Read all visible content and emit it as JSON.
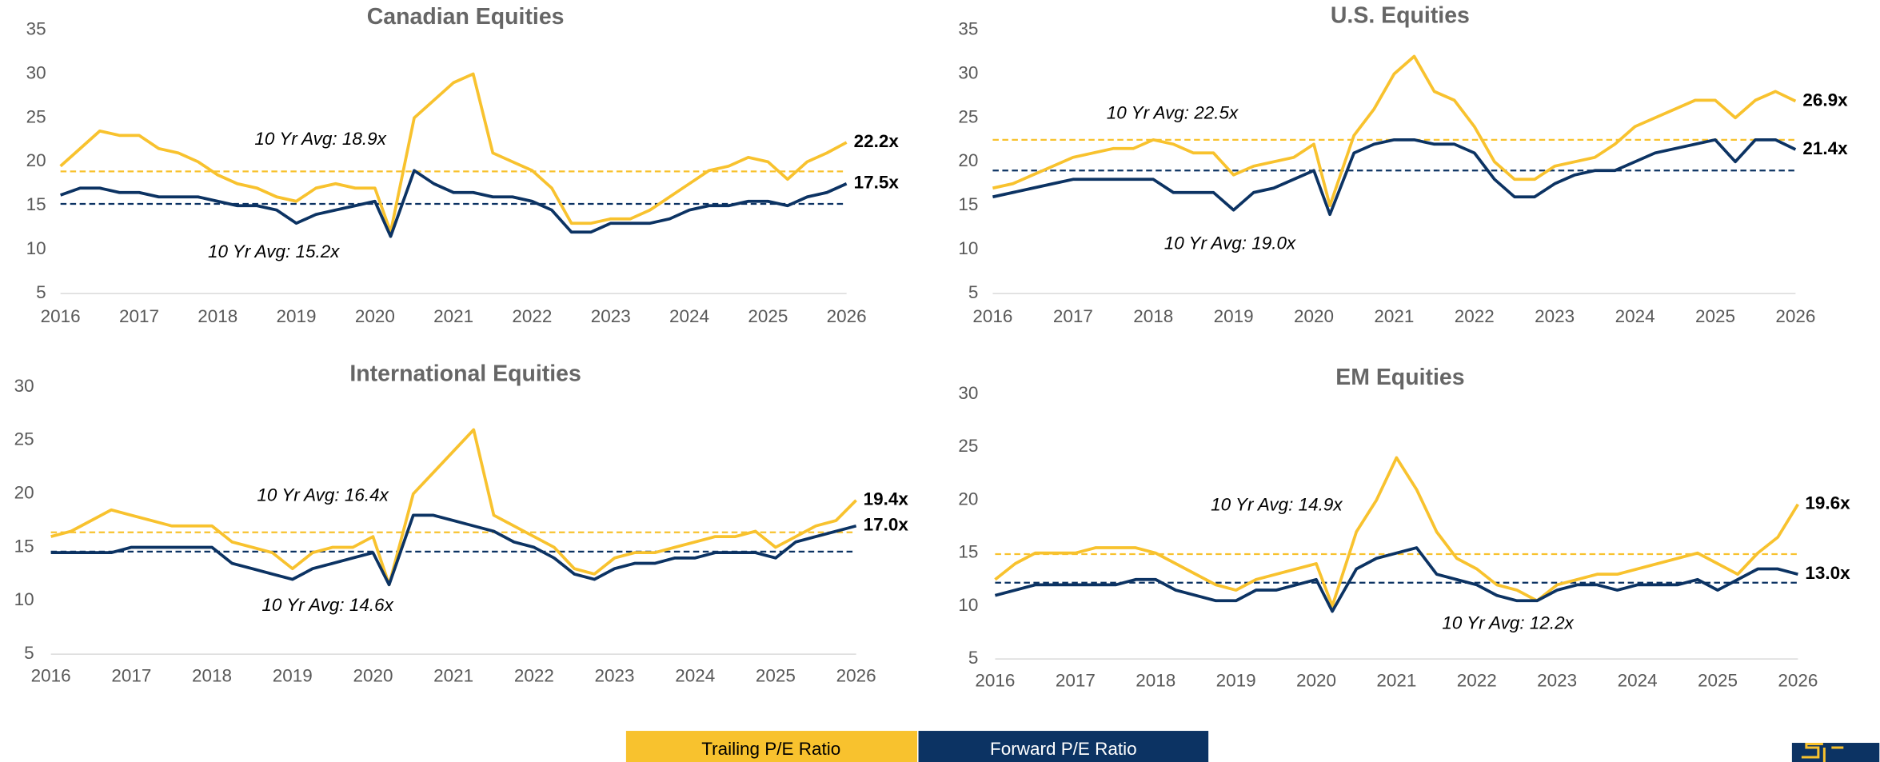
{
  "chart_data": [
    {
      "type": "line",
      "title": "Canadian Equities",
      "x": [
        2016,
        2016.25,
        2016.5,
        2016.75,
        2017,
        2017.25,
        2017.5,
        2017.75,
        2018,
        2018.25,
        2018.5,
        2018.75,
        2019,
        2019.25,
        2019.5,
        2019.75,
        2020,
        2020.2,
        2020.5,
        2020.75,
        2021,
        2021.25,
        2021.5,
        2021.75,
        2022,
        2022.25,
        2022.5,
        2022.75,
        2023,
        2023.25,
        2023.5,
        2023.75,
        2024,
        2024.25,
        2024.5,
        2024.75,
        2025,
        2025.25,
        2025.5,
        2025.75,
        2026
      ],
      "xlim": [
        2016,
        2026
      ],
      "xticks": [
        2016,
        2017,
        2018,
        2019,
        2020,
        2021,
        2022,
        2023,
        2024,
        2025,
        2026
      ],
      "ylim": [
        5,
        35
      ],
      "yticks": [
        5,
        10,
        15,
        20,
        25,
        30,
        35
      ],
      "grid": false,
      "series": [
        {
          "name": "Trailing P/E Ratio",
          "color": "#f8c22e",
          "end_label": "22.2x",
          "values": [
            19.5,
            21.5,
            23.5,
            23,
            23,
            21.5,
            21,
            20,
            18.5,
            17.5,
            17,
            16,
            15.5,
            17,
            17.5,
            17,
            17,
            12,
            25,
            27,
            29,
            30,
            21,
            20,
            19,
            17,
            13,
            13,
            13.5,
            13.5,
            14.5,
            16,
            17.5,
            19,
            19.5,
            20.5,
            20,
            18,
            20,
            21,
            22.2
          ]
        },
        {
          "name": "Forward P/E Ratio",
          "color": "#0c3363",
          "end_label": "17.5x",
          "values": [
            16.2,
            17,
            17,
            16.5,
            16.5,
            16,
            16,
            16,
            15.5,
            15,
            15,
            14.5,
            13,
            14,
            14.5,
            15,
            15.5,
            11.5,
            19,
            17.5,
            16.5,
            16.5,
            16,
            16,
            15.5,
            14.5,
            12,
            12,
            13,
            13,
            13,
            13.5,
            14.5,
            15,
            15,
            15.5,
            15.5,
            15,
            16,
            16.5,
            17.5
          ]
        }
      ],
      "avg_lines": [
        {
          "series": 0,
          "value": 18.9,
          "label": "10 Yr Avg: 18.9x"
        },
        {
          "series": 1,
          "value": 15.2,
          "label": "10 Yr Avg: 15.2x"
        }
      ]
    },
    {
      "type": "line",
      "title": "U.S. Equities",
      "x": [
        2016,
        2016.25,
        2016.5,
        2016.75,
        2017,
        2017.25,
        2017.5,
        2017.75,
        2018,
        2018.25,
        2018.5,
        2018.75,
        2019,
        2019.25,
        2019.5,
        2019.75,
        2020,
        2020.2,
        2020.5,
        2020.75,
        2021,
        2021.25,
        2021.5,
        2021.75,
        2022,
        2022.25,
        2022.5,
        2022.75,
        2023,
        2023.25,
        2023.5,
        2023.75,
        2024,
        2024.25,
        2024.5,
        2024.75,
        2025,
        2025.25,
        2025.5,
        2025.75,
        2026
      ],
      "xlim": [
        2016,
        2026
      ],
      "xticks": [
        2016,
        2017,
        2018,
        2019,
        2020,
        2021,
        2022,
        2023,
        2024,
        2025,
        2026
      ],
      "ylim": [
        5,
        35
      ],
      "yticks": [
        5,
        10,
        15,
        20,
        25,
        30,
        35
      ],
      "grid": false,
      "series": [
        {
          "name": "Trailing P/E Ratio",
          "color": "#f8c22e",
          "end_label": "26.9x",
          "values": [
            17,
            17.5,
            18.5,
            19.5,
            20.5,
            21,
            21.5,
            21.5,
            22.5,
            22,
            21,
            21,
            18.5,
            19.5,
            20,
            20.5,
            22,
            15,
            23,
            26,
            30,
            32,
            28,
            27,
            24,
            20,
            18,
            18,
            19.5,
            20,
            20.5,
            22,
            24,
            25,
            26,
            27,
            27,
            25,
            27,
            28,
            26.9
          ]
        },
        {
          "name": "Forward P/E Ratio",
          "color": "#0c3363",
          "end_label": "21.4x",
          "values": [
            16,
            16.5,
            17,
            17.5,
            18,
            18,
            18,
            18,
            18,
            16.5,
            16.5,
            16.5,
            14.5,
            16.5,
            17,
            18,
            19,
            14,
            21,
            22,
            22.5,
            22.5,
            22,
            22,
            21,
            18,
            16,
            16,
            17.5,
            18.5,
            19,
            19,
            20,
            21,
            21.5,
            22,
            22.5,
            20,
            22.5,
            22.5,
            21.4
          ]
        }
      ],
      "avg_lines": [
        {
          "series": 0,
          "value": 22.5,
          "label": "10 Yr Avg: 22.5x"
        },
        {
          "series": 1,
          "value": 19.0,
          "label": "10 Yr Avg: 19.0x"
        }
      ]
    },
    {
      "type": "line",
      "title": "International Equities",
      "x": [
        2016,
        2016.25,
        2016.5,
        2016.75,
        2017,
        2017.25,
        2017.5,
        2017.75,
        2018,
        2018.25,
        2018.5,
        2018.75,
        2019,
        2019.25,
        2019.5,
        2019.75,
        2020,
        2020.2,
        2020.5,
        2020.75,
        2021,
        2021.25,
        2021.5,
        2021.75,
        2022,
        2022.25,
        2022.5,
        2022.75,
        2023,
        2023.25,
        2023.5,
        2023.75,
        2024,
        2024.25,
        2024.5,
        2024.75,
        2025,
        2025.25,
        2025.5,
        2025.75,
        2026
      ],
      "xlim": [
        2016,
        2026
      ],
      "xticks": [
        2016,
        2017,
        2018,
        2019,
        2020,
        2021,
        2022,
        2023,
        2024,
        2025,
        2026
      ],
      "ylim": [
        5,
        30
      ],
      "yticks": [
        5,
        10,
        15,
        20,
        25,
        30
      ],
      "grid": false,
      "series": [
        {
          "name": "Trailing P/E Ratio",
          "color": "#f8c22e",
          "end_label": "19.4x",
          "values": [
            16,
            16.5,
            17.5,
            18.5,
            18,
            17.5,
            17,
            17,
            17,
            15.5,
            15,
            14.5,
            13,
            14.5,
            15,
            15,
            16,
            11.5,
            20,
            22,
            24,
            26,
            18,
            17,
            16,
            15,
            13,
            12.5,
            14,
            14.5,
            14.5,
            15,
            15.5,
            16,
            16,
            16.5,
            15,
            16,
            17,
            17.5,
            19.4
          ]
        },
        {
          "name": "Forward P/E Ratio",
          "color": "#0c3363",
          "end_label": "17.0x",
          "values": [
            14.5,
            14.5,
            14.5,
            14.5,
            15,
            15,
            15,
            15,
            15,
            13.5,
            13,
            12.5,
            12,
            13,
            13.5,
            14,
            14.5,
            11.5,
            18,
            18,
            17.5,
            17,
            16.5,
            15.5,
            15,
            14,
            12.5,
            12,
            13,
            13.5,
            13.5,
            14,
            14,
            14.5,
            14.5,
            14.5,
            14,
            15.5,
            16,
            16.5,
            17.0
          ]
        }
      ],
      "avg_lines": [
        {
          "series": 0,
          "value": 16.4,
          "label": "10 Yr Avg: 16.4x"
        },
        {
          "series": 1,
          "value": 14.6,
          "label": "10 Yr Avg: 14.6x"
        }
      ]
    },
    {
      "type": "line",
      "title": "EM Equities",
      "x": [
        2016,
        2016.25,
        2016.5,
        2016.75,
        2017,
        2017.25,
        2017.5,
        2017.75,
        2018,
        2018.25,
        2018.5,
        2018.75,
        2019,
        2019.25,
        2019.5,
        2019.75,
        2020,
        2020.2,
        2020.5,
        2020.75,
        2021,
        2021.25,
        2021.5,
        2021.75,
        2022,
        2022.25,
        2022.5,
        2022.75,
        2023,
        2023.25,
        2023.5,
        2023.75,
        2024,
        2024.25,
        2024.5,
        2024.75,
        2025,
        2025.25,
        2025.5,
        2025.75,
        2026
      ],
      "xlim": [
        2016,
        2026
      ],
      "xticks": [
        2016,
        2017,
        2018,
        2019,
        2020,
        2021,
        2022,
        2023,
        2024,
        2025,
        2026
      ],
      "ylim": [
        5,
        30
      ],
      "yticks": [
        5,
        10,
        15,
        20,
        25,
        30
      ],
      "grid": false,
      "series": [
        {
          "name": "Trailing P/E Ratio",
          "color": "#f8c22e",
          "end_label": "19.6x",
          "values": [
            12.5,
            14,
            15,
            15,
            15,
            15.5,
            15.5,
            15.5,
            15,
            14,
            13,
            12,
            11.5,
            12.5,
            13,
            13.5,
            14,
            10,
            17,
            20,
            24,
            21,
            17,
            14.5,
            13.5,
            12,
            11.5,
            10.5,
            12,
            12.5,
            13,
            13,
            13.5,
            14,
            14.5,
            15,
            14,
            13,
            15,
            16.5,
            19.6
          ]
        },
        {
          "name": "Forward P/E Ratio",
          "color": "#0c3363",
          "end_label": "13.0x",
          "values": [
            11,
            11.5,
            12,
            12,
            12,
            12,
            12,
            12.5,
            12.5,
            11.5,
            11,
            10.5,
            10.5,
            11.5,
            11.5,
            12,
            12.5,
            9.5,
            13.5,
            14.5,
            15,
            15.5,
            13,
            12.5,
            12,
            11,
            10.5,
            10.5,
            11.5,
            12,
            12,
            11.5,
            12,
            12,
            12,
            12.5,
            11.5,
            12.5,
            13.5,
            13.5,
            13.0
          ]
        }
      ],
      "avg_lines": [
        {
          "series": 0,
          "value": 14.9,
          "label": "10 Yr Avg: 14.9x"
        },
        {
          "series": 1,
          "value": 12.2,
          "label": "10 Yr Avg: 12.2x"
        }
      ]
    }
  ]
}
